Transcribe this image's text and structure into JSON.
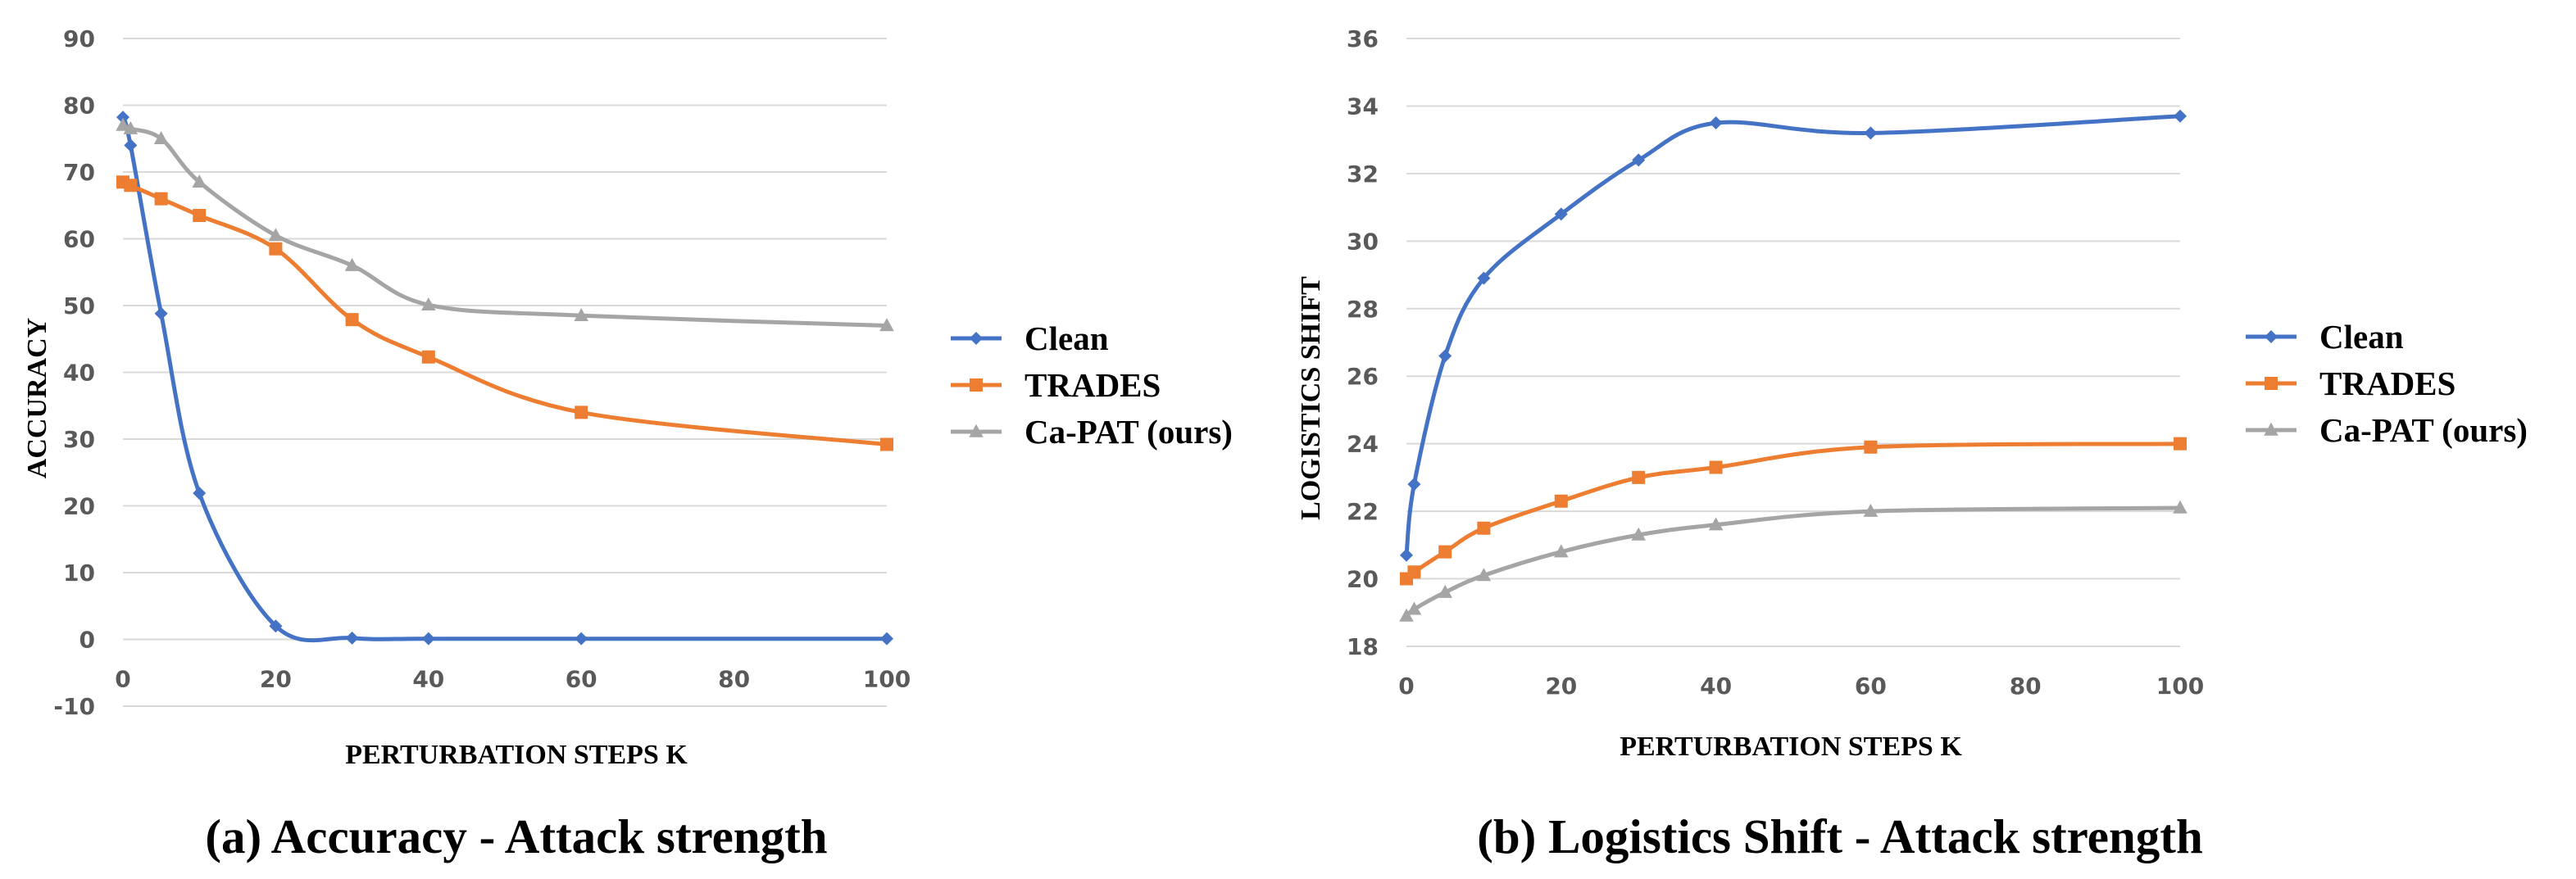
{
  "chart_data": [
    {
      "type": "line",
      "caption": "(a) Accuracy - Attack strength",
      "xlabel": "PERTURBATION STEPS K",
      "ylabel": "ACCURACY",
      "xlim": [
        0,
        100
      ],
      "ylim": [
        -10,
        90
      ],
      "xticks": [
        0,
        20,
        40,
        60,
        80,
        100
      ],
      "yticks": [
        -10,
        0,
        10,
        20,
        30,
        40,
        50,
        60,
        70,
        80,
        90
      ],
      "grid": true,
      "legend_position": "right",
      "series": [
        {
          "name": "Clean",
          "color": "#4472C4",
          "marker": "diamond",
          "x": [
            0,
            1,
            5,
            10,
            20,
            30,
            40,
            60,
            100
          ],
          "y": [
            78.2,
            74.0,
            48.8,
            21.9,
            2.0,
            0.2,
            0.1,
            0.1,
            0.1
          ]
        },
        {
          "name": "TRADES",
          "color": "#ED7D31",
          "marker": "square",
          "x": [
            0,
            1,
            5,
            10,
            20,
            30,
            40,
            60,
            100
          ],
          "y": [
            68.5,
            68.0,
            66.0,
            63.5,
            58.5,
            47.9,
            42.3,
            34.0,
            29.2
          ]
        },
        {
          "name": "Ca-PAT (ours)",
          "color": "#A5A5A5",
          "marker": "triangle",
          "x": [
            0,
            1,
            5,
            10,
            20,
            30,
            40,
            60,
            100
          ],
          "y": [
            77.0,
            76.5,
            75.0,
            68.5,
            60.5,
            56.0,
            50.1,
            48.5,
            47.0
          ]
        }
      ]
    },
    {
      "type": "line",
      "caption": "(b) Logistics Shift - Attack strength",
      "xlabel": "PERTURBATION STEPS K",
      "ylabel": "LOGISTICS SHIFT",
      "xlim": [
        0,
        100
      ],
      "ylim": [
        18,
        36
      ],
      "xticks": [
        0,
        20,
        40,
        60,
        80,
        100
      ],
      "yticks": [
        18,
        20,
        22,
        24,
        26,
        28,
        30,
        32,
        34,
        36
      ],
      "grid": true,
      "legend_position": "right",
      "series": [
        {
          "name": "Clean",
          "color": "#4472C4",
          "marker": "diamond",
          "x": [
            0,
            1,
            5,
            10,
            20,
            30,
            40,
            60,
            100
          ],
          "y": [
            20.7,
            22.8,
            26.6,
            28.9,
            30.8,
            32.4,
            33.5,
            33.2,
            33.7
          ]
        },
        {
          "name": "TRADES",
          "color": "#ED7D31",
          "marker": "square",
          "x": [
            0,
            1,
            5,
            10,
            20,
            30,
            40,
            60,
            100
          ],
          "y": [
            20.0,
            20.2,
            20.8,
            21.5,
            22.3,
            23.0,
            23.3,
            23.9,
            24.0
          ]
        },
        {
          "name": "Ca-PAT (ours)",
          "color": "#A5A5A5",
          "marker": "triangle",
          "x": [
            0,
            1,
            5,
            10,
            20,
            30,
            40,
            60,
            100
          ],
          "y": [
            18.9,
            19.1,
            19.6,
            20.1,
            20.8,
            21.3,
            21.6,
            22.0,
            22.1
          ]
        }
      ]
    }
  ]
}
